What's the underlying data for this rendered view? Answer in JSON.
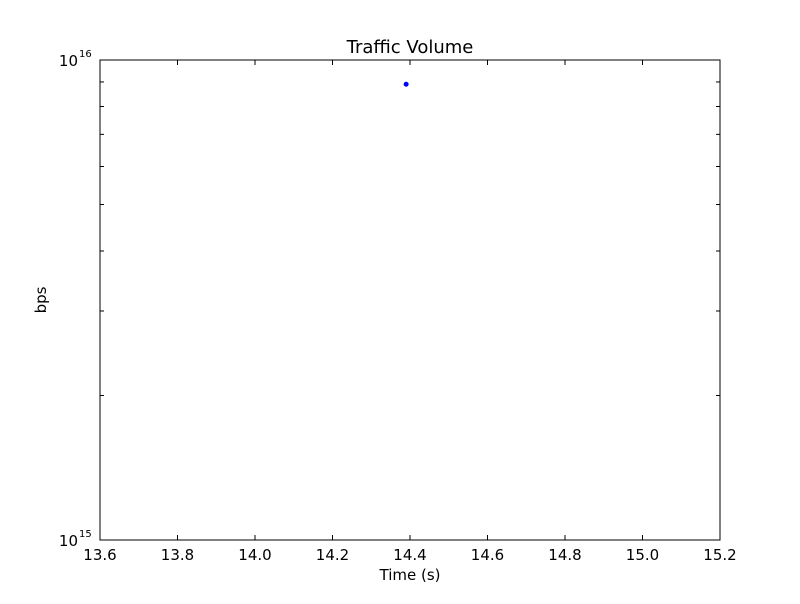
{
  "chart_data": {
    "type": "scatter",
    "title": "Traffic Volume",
    "xlabel": "Time (s)",
    "ylabel": "bps",
    "xlim": [
      13.6,
      15.2
    ],
    "ylim": [
      1000000000000000.0,
      1e+16
    ],
    "yscale": "log",
    "grid": false,
    "x_ticks": [
      "13.6",
      "13.8",
      "14.0",
      "14.2",
      "14.4",
      "14.6",
      "14.8",
      "15.0",
      "15.2"
    ],
    "y_ticks": [
      {
        "base": "10",
        "exponent": "15",
        "value": 1000000000000000.0
      },
      {
        "base": "10",
        "exponent": "16",
        "value": 1e+16
      }
    ],
    "series": [
      {
        "color": "#0000ff",
        "points": [
          {
            "x": 14.39,
            "y": 8900000000000000.0
          }
        ]
      }
    ]
  }
}
